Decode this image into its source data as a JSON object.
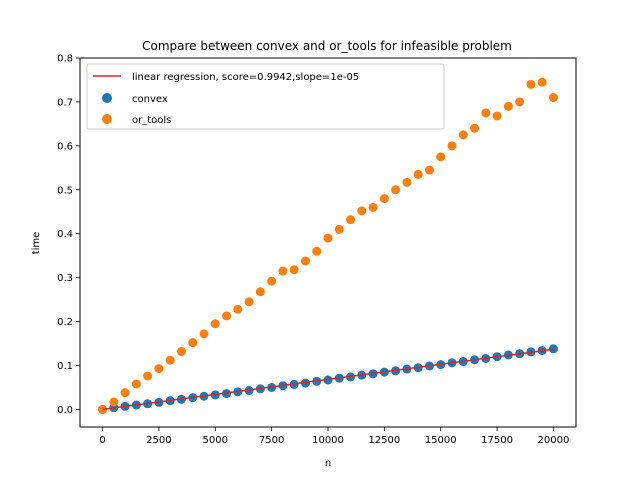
{
  "chart_data": {
    "type": "scatter",
    "title": "Compare between convex and or_tools for infeasible problem",
    "xlabel": "n",
    "ylabel": "time",
    "xlim": [
      -1000,
      21000
    ],
    "ylim": [
      -0.04,
      0.8
    ],
    "xticks": [
      0,
      2500,
      5000,
      7500,
      10000,
      12500,
      15000,
      17500,
      20000
    ],
    "yticks": [
      0.0,
      0.1,
      0.2,
      0.3,
      0.4,
      0.5,
      0.6,
      0.7,
      0.8
    ],
    "legend_position": "upper-left",
    "regression": {
      "label": "linear regression, score=0.9942,slope=1e-05",
      "color": "#d62728",
      "x": [
        0,
        20000
      ],
      "y": [
        0.0,
        0.137
      ]
    },
    "series": [
      {
        "name": "convex",
        "color": "#1f77b4",
        "x": [
          0,
          500,
          1000,
          1500,
          2000,
          2500,
          3000,
          3500,
          4000,
          4500,
          5000,
          5500,
          6000,
          6500,
          7000,
          7500,
          8000,
          8500,
          9000,
          9500,
          10000,
          10500,
          11000,
          11500,
          12000,
          12500,
          13000,
          13500,
          14000,
          14500,
          15000,
          15500,
          16000,
          16500,
          17000,
          17500,
          18000,
          18500,
          19000,
          19500,
          20000
        ],
        "y": [
          0.0,
          0.004,
          0.007,
          0.01,
          0.013,
          0.016,
          0.02,
          0.023,
          0.027,
          0.03,
          0.033,
          0.036,
          0.04,
          0.043,
          0.047,
          0.05,
          0.054,
          0.057,
          0.06,
          0.064,
          0.067,
          0.071,
          0.074,
          0.078,
          0.081,
          0.085,
          0.088,
          0.092,
          0.095,
          0.099,
          0.102,
          0.106,
          0.109,
          0.113,
          0.116,
          0.12,
          0.124,
          0.127,
          0.131,
          0.134,
          0.138
        ]
      },
      {
        "name": "or_tools",
        "color": "#ff7f0e",
        "x": [
          0,
          500,
          1000,
          1500,
          2000,
          2500,
          3000,
          3500,
          4000,
          4500,
          5000,
          5500,
          6000,
          6500,
          7000,
          7500,
          8000,
          8500,
          9000,
          9500,
          10000,
          10500,
          11000,
          11500,
          12000,
          12500,
          13000,
          13500,
          14000,
          14500,
          15000,
          15500,
          16000,
          16500,
          17000,
          17500,
          18000,
          18500,
          19000,
          19500,
          20000
        ],
        "y": [
          0.0,
          0.017,
          0.038,
          0.058,
          0.076,
          0.093,
          0.112,
          0.132,
          0.152,
          0.172,
          0.195,
          0.213,
          0.228,
          0.245,
          0.268,
          0.292,
          0.315,
          0.318,
          0.338,
          0.36,
          0.39,
          0.41,
          0.432,
          0.452,
          0.46,
          0.48,
          0.5,
          0.517,
          0.535,
          0.545,
          0.575,
          0.6,
          0.625,
          0.64,
          0.675,
          0.668,
          0.69,
          0.7,
          0.74,
          0.745,
          0.71
        ]
      }
    ]
  }
}
